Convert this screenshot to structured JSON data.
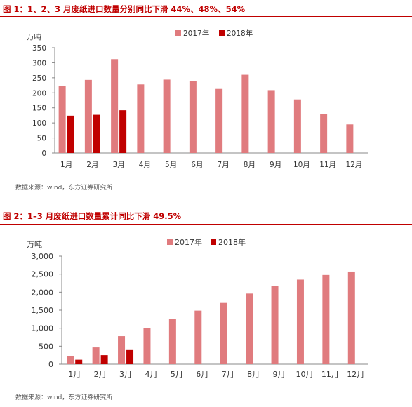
{
  "figures": [
    {
      "title": "图 1：1、2、3 月废纸进口数量分别同比下滑 44%、48%、54%",
      "source": "数据来源：wind，东方证券研究所"
    },
    {
      "title": "图 2：1–3 月废纸进口数量累计同比下滑 49.5%",
      "source": "数据来源：wind，东方证券研究所"
    }
  ],
  "chart_data": [
    {
      "type": "bar",
      "ylabel": "万吨",
      "categories": [
        "1月",
        "2月",
        "3月",
        "4月",
        "5月",
        "6月",
        "7月",
        "8月",
        "9月",
        "10月",
        "11月",
        "12月"
      ],
      "series": [
        {
          "name": "2017年",
          "color": "#e07b7e",
          "values": [
            223,
            243,
            312,
            228,
            244,
            238,
            213,
            260,
            209,
            178,
            129,
            95
          ]
        },
        {
          "name": "2018年",
          "color": "#c00000",
          "values": [
            124,
            127,
            142,
            null,
            null,
            null,
            null,
            null,
            null,
            null,
            null,
            null
          ]
        }
      ],
      "ylim": [
        0,
        350
      ],
      "yticks": [
        0,
        50,
        100,
        150,
        200,
        250,
        300,
        350
      ],
      "ytick_labels": [
        "0",
        "50",
        "100",
        "150",
        "200",
        "250",
        "300",
        "350"
      ],
      "legend": "top-center",
      "grid": false
    },
    {
      "type": "bar",
      "ylabel": "万吨",
      "categories": [
        "1月",
        "2月",
        "3月",
        "4月",
        "5月",
        "6月",
        "7月",
        "8月",
        "9月",
        "10月",
        "11月",
        "12月"
      ],
      "series": [
        {
          "name": "2017年",
          "color": "#e07b7e",
          "values": [
            223,
            466,
            778,
            1006,
            1250,
            1488,
            1701,
            1961,
            2170,
            2348,
            2477,
            2572
          ]
        },
        {
          "name": "2018年",
          "color": "#c00000",
          "values": [
            124,
            251,
            393,
            null,
            null,
            null,
            null,
            null,
            null,
            null,
            null,
            null
          ]
        }
      ],
      "ylim": [
        0,
        3000
      ],
      "yticks": [
        0,
        500,
        1000,
        1500,
        2000,
        2500,
        3000
      ],
      "ytick_labels": [
        "0",
        "500",
        "1,000",
        "1,500",
        "2,000",
        "2,500",
        "3,000"
      ],
      "legend": "top-center",
      "grid": false
    }
  ]
}
